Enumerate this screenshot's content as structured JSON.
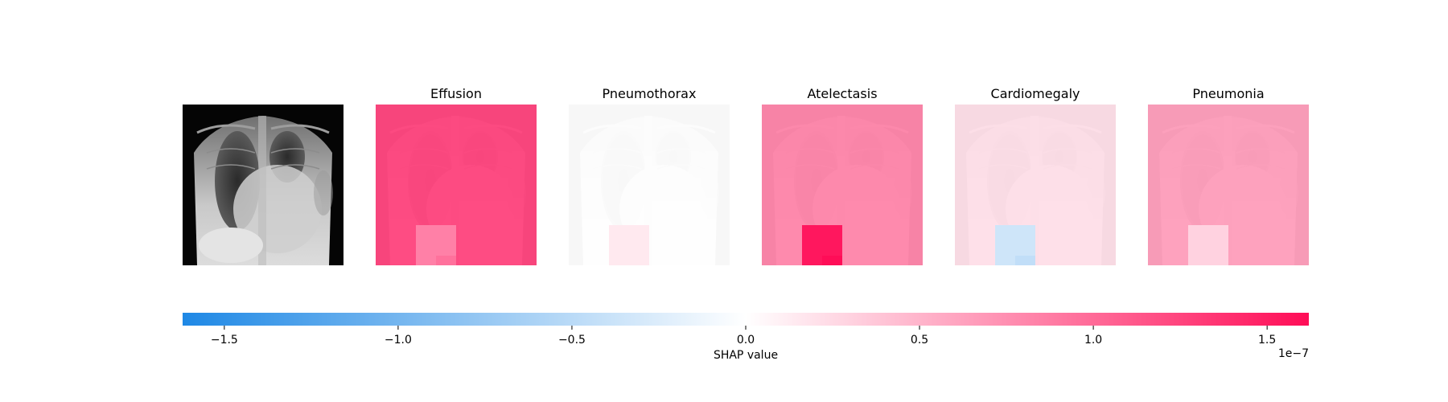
{
  "chart_data": {
    "type": "heatmap",
    "description_kind": "image_explanation_panels",
    "original_image": {
      "name": "chest x-ray",
      "label": ""
    },
    "panels": [
      {
        "title": "Effusion",
        "background_shap": 1.45,
        "patch_shap": 0.85,
        "subpatch_shap": 0.95
      },
      {
        "title": "Pneumothorax",
        "background_shap": 0.0,
        "patch_shap": 0.15,
        "subpatch_shap": 0.15
      },
      {
        "title": "Atelectasis",
        "background_shap": 0.95,
        "patch_shap": 1.55,
        "subpatch_shap": 1.65
      },
      {
        "title": "Cardiomegaly",
        "background_shap": 0.25,
        "patch_shap": -0.35,
        "subpatch_shap": -0.45
      },
      {
        "title": "Pneumonia",
        "background_shap": 0.75,
        "patch_shap": 0.3,
        "subpatch_shap": 0.3
      }
    ],
    "colorbar": {
      "label": "SHAP value",
      "range": [
        -1.62,
        1.62
      ],
      "ticks": [
        -1.5,
        -1.0,
        -0.5,
        0.0,
        0.5,
        1.0,
        1.5
      ],
      "tick_labels": [
        "−1.5",
        "−1.0",
        "−0.5",
        "0.0",
        "0.5",
        "1.0",
        "1.5"
      ],
      "offset_text": "1e−7",
      "colormap": {
        "negative": "#1e88e5",
        "zero": "#ffffff",
        "positive": "#ff0d57"
      }
    }
  }
}
